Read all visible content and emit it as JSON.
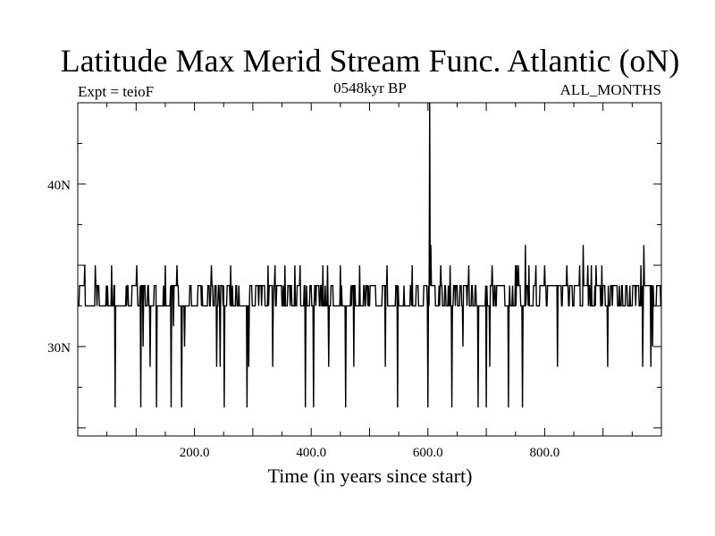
{
  "chart_data": {
    "type": "line",
    "title": "Latitude Max Merid Stream Func. Atlantic (oN)",
    "subtitle_left": "Expt = teioF",
    "subtitle_center": "0548kyr BP",
    "subtitle_right": "ALL_MONTHS",
    "xlabel": "Time (in years since start)",
    "ylabel": "",
    "xlim": [
      0,
      1000
    ],
    "ylim": [
      24.5,
      45
    ],
    "x_ticks_labeled": [
      {
        "value": 200,
        "label": "200.0"
      },
      {
        "value": 400,
        "label": "400.0"
      },
      {
        "value": 600,
        "label": "600.0"
      },
      {
        "value": 800,
        "label": "800.0"
      }
    ],
    "x_minor_step": 50,
    "y_ticks_labeled": [
      {
        "value": 30,
        "label": "30N"
      },
      {
        "value": 40,
        "label": "40N"
      }
    ],
    "y_minor_step": 2.5,
    "baseline_levels": [
      32.5,
      33.75
    ],
    "series": [
      {
        "name": "Latitude of max meridional stream function",
        "description": "annual values fluctuating between ~32.5N and ~33.75N with occasional jumps",
        "x_start": 1,
        "x_step": 1,
        "base_pattern_levels": [
          32.5,
          33.75
        ],
        "spikes": [
          {
            "x": 64,
            "y": 26.25
          },
          {
            "x": 108,
            "y": 26.25
          },
          {
            "x": 112,
            "y": 30
          },
          {
            "x": 124,
            "y": 28.75
          },
          {
            "x": 135,
            "y": 26.25
          },
          {
            "x": 160,
            "y": 26.25
          },
          {
            "x": 164,
            "y": 31.25
          },
          {
            "x": 178,
            "y": 26.25
          },
          {
            "x": 183,
            "y": 30
          },
          {
            "x": 238,
            "y": 28.75
          },
          {
            "x": 244,
            "y": 28.75
          },
          {
            "x": 251,
            "y": 26.25
          },
          {
            "x": 290,
            "y": 26.25
          },
          {
            "x": 293,
            "y": 28.75
          },
          {
            "x": 334,
            "y": 28.75
          },
          {
            "x": 390,
            "y": 26.25
          },
          {
            "x": 404,
            "y": 26.25
          },
          {
            "x": 430,
            "y": 28.75
          },
          {
            "x": 459,
            "y": 26.25
          },
          {
            "x": 473,
            "y": 28.75
          },
          {
            "x": 527,
            "y": 28.75
          },
          {
            "x": 548,
            "y": 26.25
          },
          {
            "x": 600,
            "y": 26.25
          },
          {
            "x": 603,
            "y": 45
          },
          {
            "x": 605,
            "y": 36.25
          },
          {
            "x": 641,
            "y": 26.25
          },
          {
            "x": 660,
            "y": 30
          },
          {
            "x": 686,
            "y": 26.25
          },
          {
            "x": 700,
            "y": 26.25
          },
          {
            "x": 706,
            "y": 28.75
          },
          {
            "x": 738,
            "y": 26.25
          },
          {
            "x": 762,
            "y": 26.25
          },
          {
            "x": 767,
            "y": 36.25
          },
          {
            "x": 822,
            "y": 28.75
          },
          {
            "x": 866,
            "y": 36.25
          },
          {
            "x": 880,
            "y": 35
          },
          {
            "x": 908,
            "y": 28.75
          },
          {
            "x": 968,
            "y": 28.75
          },
          {
            "x": 970,
            "y": 36.25
          },
          {
            "x": 982,
            "y": 28.75
          },
          {
            "x": 985,
            "y": 30
          }
        ],
        "highs": [
          12,
          30,
          58,
          101,
          150,
          170,
          229,
          262,
          326,
          338,
          355,
          372,
          381,
          420,
          428,
          450,
          483,
          530,
          573,
          622,
          638,
          670,
          686,
          710,
          750,
          752,
          755,
          773,
          785,
          800,
          838,
          860,
          874,
          888,
          898,
          965
        ]
      }
    ]
  }
}
